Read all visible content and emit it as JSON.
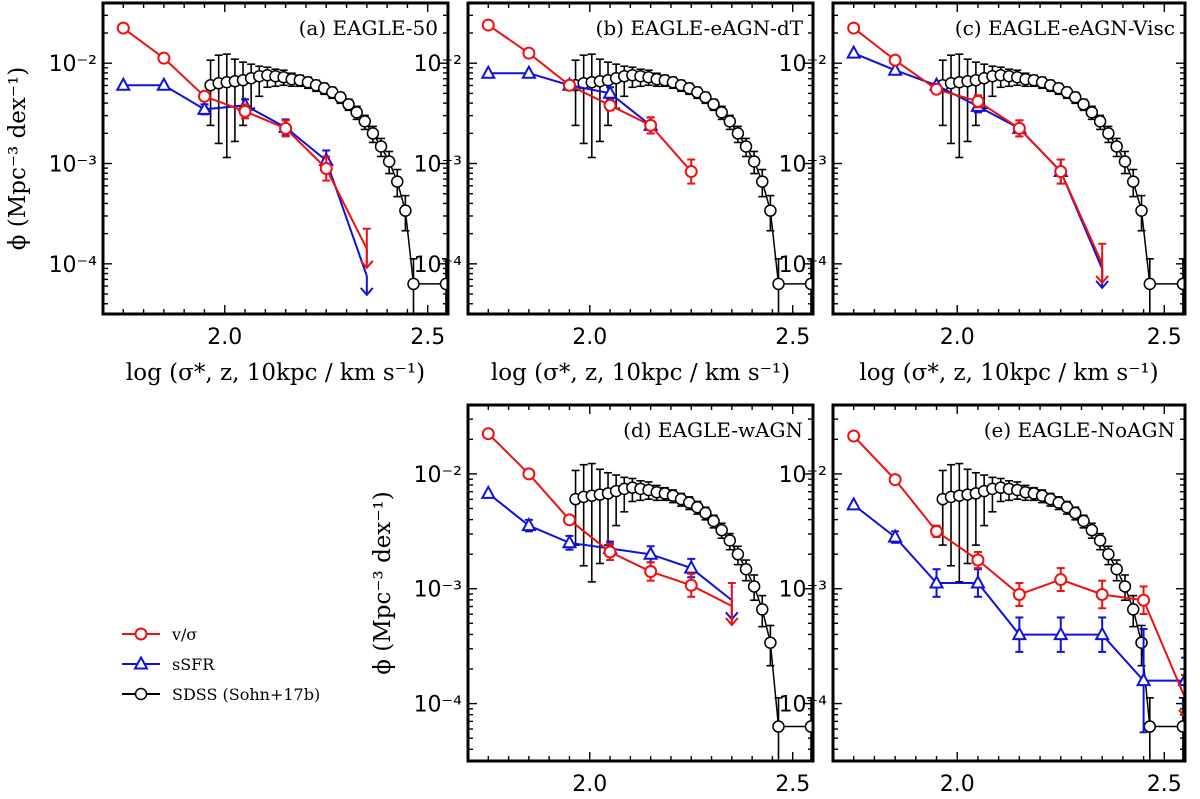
{
  "chart_data": {
    "type": "scatter",
    "x_label": "log (σ*, z, 10kpc / km s⁻¹)",
    "y_label": "ϕ (Mpc⁻³ dex⁻¹)",
    "xlim": [
      1.7,
      2.55
    ],
    "ylim_log10": [
      -4.5,
      -1.4
    ],
    "x_ticks": [
      {
        "value": 2.0,
        "label": "2.0"
      },
      {
        "value": 2.5,
        "label": "2.5"
      }
    ],
    "y_ticks": [
      {
        "value": -2,
        "label": "10⁻²"
      },
      {
        "value": -3,
        "label": "10⁻³"
      },
      {
        "value": -4,
        "label": "10⁻⁴"
      }
    ],
    "colors": {
      "vsig": "#ee1111",
      "ssfr": "#1111dd",
      "sdss": "#000000"
    },
    "legend": [
      {
        "key": "vsig",
        "label": "v/σ",
        "marker": "circle"
      },
      {
        "key": "ssfr",
        "label": "sSFR",
        "marker": "triangle"
      },
      {
        "key": "sdss",
        "label": "SDSS (Sohn+17b)",
        "marker": "circle-open"
      }
    ],
    "sdss": {
      "x": [
        1.965,
        1.985,
        2.005,
        2.025,
        2.045,
        2.065,
        2.085,
        2.105,
        2.125,
        2.145,
        2.165,
        2.185,
        2.205,
        2.225,
        2.245,
        2.265,
        2.285,
        2.305,
        2.325,
        2.345,
        2.365,
        2.385,
        2.405,
        2.425,
        2.445,
        2.465,
        2.545
      ],
      "y": [
        -2.22,
        -2.2,
        -2.19,
        -2.18,
        -2.17,
        -2.15,
        -2.13,
        -2.12,
        -2.13,
        -2.14,
        -2.16,
        -2.17,
        -2.19,
        -2.22,
        -2.25,
        -2.29,
        -2.34,
        -2.41,
        -2.49,
        -2.58,
        -2.7,
        -2.83,
        -2.98,
        -3.18,
        -3.47,
        -4.2,
        -4.2
      ],
      "err_up": [
        0.25,
        0.28,
        0.28,
        0.22,
        0.18,
        0.14,
        0.1,
        0.08,
        0.07,
        0.07,
        0.06,
        0.05,
        0.05,
        0.05,
        0.05,
        0.05,
        0.05,
        0.05,
        0.06,
        0.06,
        0.07,
        0.08,
        0.1,
        0.12,
        0.15,
        0.25,
        0.25
      ],
      "err_dn": [
        0.4,
        0.6,
        0.75,
        0.6,
        0.45,
        0.3,
        0.2,
        0.12,
        0.1,
        0.08,
        0.07,
        0.06,
        0.06,
        0.06,
        0.06,
        0.06,
        0.06,
        0.06,
        0.07,
        0.08,
        0.09,
        0.1,
        0.12,
        0.15,
        0.2,
        0.5,
        0.5
      ]
    },
    "panels": [
      {
        "title": "(a) EAGLE-50",
        "vsig": {
          "x": [
            1.75,
            1.85,
            1.95,
            2.05,
            2.15,
            2.25,
            2.35
          ],
          "y": [
            -1.65,
            -1.95,
            -2.33,
            -2.48,
            -2.65,
            -3.05,
            -3.85
          ],
          "err": [
            0,
            0,
            0,
            0.07,
            0.08,
            0.12,
            0.2
          ],
          "upper_limit_last": true
        },
        "ssfr": {
          "x": [
            1.75,
            1.85,
            1.95,
            2.05,
            2.15,
            2.25,
            2.35
          ],
          "y": [
            -2.22,
            -2.22,
            -2.46,
            -2.42,
            -2.64,
            -2.97,
            -4.12
          ],
          "err": [
            0,
            0,
            0.05,
            0.06,
            0.08,
            0.1,
            0
          ],
          "upper_limit_last": true
        }
      },
      {
        "title": "(b) EAGLE-eAGN-dT",
        "vsig": {
          "x": [
            1.75,
            1.85,
            1.95,
            2.05,
            2.15,
            2.25
          ],
          "y": [
            -1.62,
            -1.9,
            -2.22,
            -2.42,
            -2.62,
            -3.08
          ],
          "err": [
            0,
            0,
            0,
            0.05,
            0.08,
            0.12
          ],
          "upper_limit_last": false
        },
        "ssfr": {
          "x": [
            1.75,
            1.85,
            1.95,
            2.05,
            2.15
          ],
          "y": [
            -2.1,
            -2.1,
            -2.22,
            -2.3,
            -2.62
          ],
          "err": [
            0,
            0,
            0,
            0.06,
            0.08
          ],
          "upper_limit_last": false
        }
      },
      {
        "title": "(c) EAGLE-eAGN-Visc",
        "vsig": {
          "x": [
            1.75,
            1.85,
            1.95,
            2.05,
            2.15,
            2.25,
            2.35
          ],
          "y": [
            -1.65,
            -1.97,
            -2.26,
            -2.38,
            -2.65,
            -3.08,
            -4.0
          ],
          "err": [
            0,
            0,
            0,
            0.06,
            0.08,
            0.12,
            0.2
          ],
          "upper_limit_last": true
        },
        "ssfr": {
          "x": [
            1.75,
            1.85,
            1.95,
            2.05,
            2.15,
            2.25,
            2.35
          ],
          "y": [
            -1.9,
            -2.07,
            -2.22,
            -2.43,
            -2.65,
            -3.08,
            -4.05
          ],
          "err": [
            0,
            0,
            0,
            0.06,
            0.08,
            0.12,
            0
          ],
          "upper_limit_last": true
        }
      },
      {
        "title": "(d) EAGLE-wAGN",
        "vsig": {
          "x": [
            1.75,
            1.85,
            1.95,
            2.05,
            2.15,
            2.25,
            2.35
          ],
          "y": [
            -1.65,
            -2.0,
            -2.4,
            -2.68,
            -2.85,
            -2.97,
            -3.15
          ],
          "err": [
            0,
            0,
            0,
            0.07,
            0.08,
            0.1,
            0.2
          ],
          "upper_limit_last": true
        },
        "ssfr": {
          "x": [
            1.75,
            1.85,
            1.95,
            2.05,
            2.15,
            2.25,
            2.35
          ],
          "y": [
            -2.17,
            -2.45,
            -2.6,
            -2.65,
            -2.7,
            -2.82,
            -3.1
          ],
          "err": [
            0,
            0.05,
            0.06,
            0.06,
            0.07,
            0.08,
            0
          ],
          "upper_limit_last": true
        }
      },
      {
        "title": "(e) EAGLE-NoAGN",
        "vsig": {
          "x": [
            1.75,
            1.85,
            1.95,
            2.05,
            2.15,
            2.25,
            2.35,
            2.45,
            2.55
          ],
          "y": [
            -1.67,
            -2.05,
            -2.5,
            -2.75,
            -3.05,
            -2.92,
            -3.05,
            -3.1,
            -3.95
          ],
          "err": [
            0,
            0,
            0.05,
            0.07,
            0.1,
            0.1,
            0.12,
            0.12,
            0.2
          ],
          "upper_limit_last": true
        },
        "ssfr": {
          "x": [
            1.75,
            1.85,
            1.95,
            2.05,
            2.15,
            2.25,
            2.35,
            2.45,
            2.55
          ],
          "y": [
            -2.27,
            -2.55,
            -2.95,
            -2.95,
            -3.4,
            -3.4,
            -3.4,
            -3.8,
            -3.8
          ],
          "err": [
            0,
            0.05,
            0.12,
            0.12,
            0.15,
            0.15,
            0.15,
            0.45,
            0.2
          ],
          "upper_limit_last": false
        }
      }
    ]
  }
}
